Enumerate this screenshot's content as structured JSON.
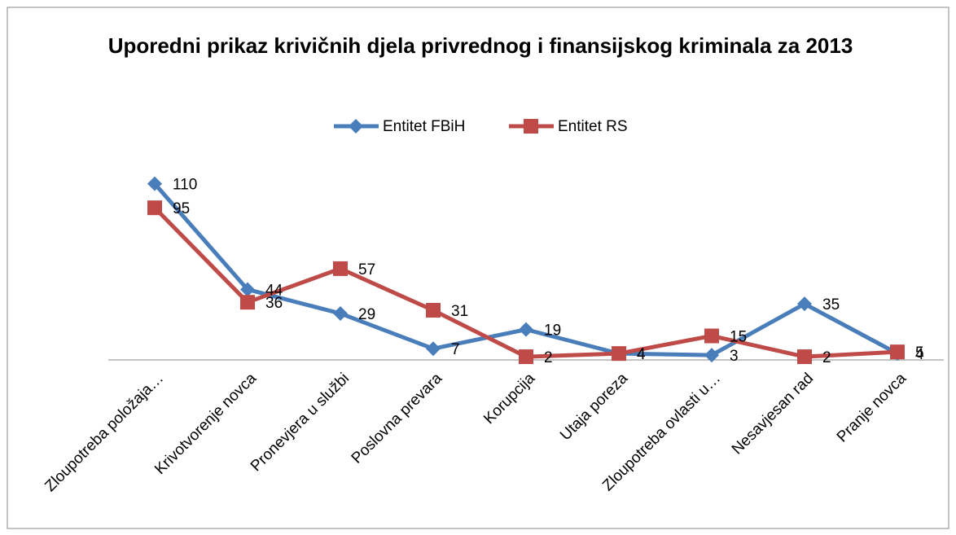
{
  "chart_data": {
    "type": "line",
    "title": "Uporedni prikaz krivičnih djela privrednog i finansijskog kriminala za 2013",
    "categories": [
      "Zloupotreba položaja…",
      "Krivotvorenje novca",
      "Pronevjera u službi",
      "Poslovna prevara",
      "Korupcija",
      "Utaja poreza",
      "Zloupotreba ovlasti u…",
      "Nesavjesan rad",
      "Pranje novca"
    ],
    "series": [
      {
        "name": "Entitet FBiH",
        "color": "#4a7ebb",
        "marker": "diamond",
        "values": [
          110,
          44,
          29,
          7,
          19,
          4,
          3,
          35,
          4
        ]
      },
      {
        "name": "Entitet RS",
        "color": "#be4b48",
        "marker": "square",
        "values": [
          95,
          36,
          57,
          31,
          2,
          4,
          15,
          2,
          5
        ]
      }
    ],
    "ylim": [
      0,
      120
    ],
    "legend": "top"
  }
}
